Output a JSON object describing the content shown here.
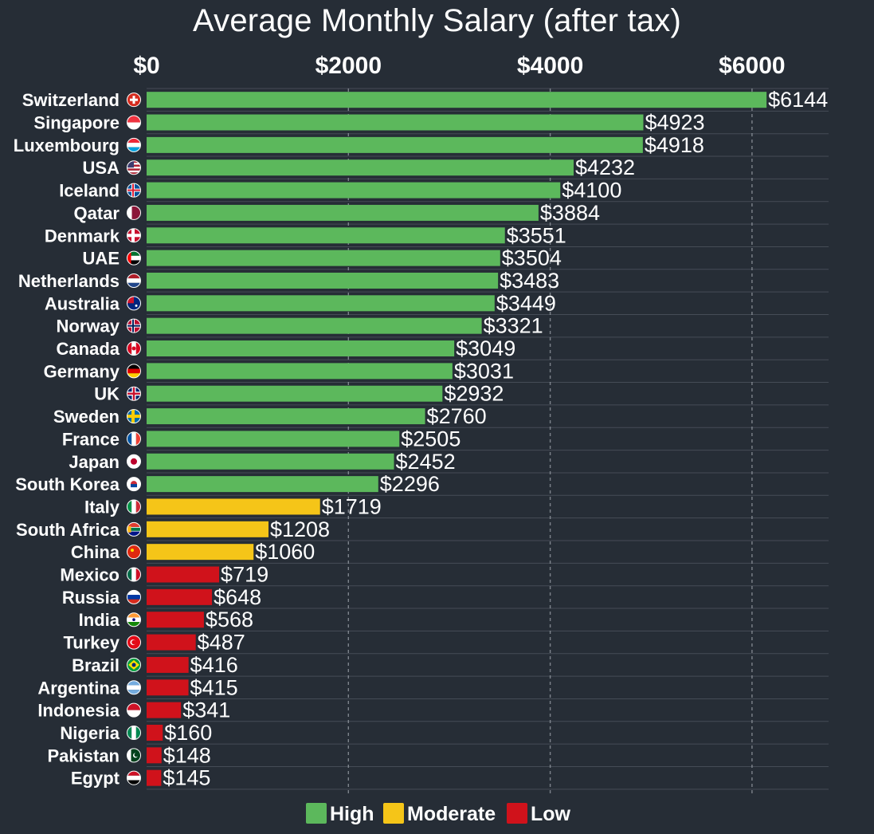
{
  "chart_data": {
    "type": "bar",
    "orientation": "horizontal",
    "title": "Average Monthly Salary (after tax)",
    "xlim": [
      0,
      6800
    ],
    "xticks": [
      0,
      2000,
      4000,
      6000
    ],
    "xtick_labels": [
      "$0",
      "$2000",
      "$4000",
      "$6000"
    ],
    "grid": true,
    "legend_position": "bottom",
    "categories": [
      "Switzerland",
      "Singapore",
      "Luxembourg",
      "USA",
      "Iceland",
      "Qatar",
      "Denmark",
      "UAE",
      "Netherlands",
      "Australia",
      "Norway",
      "Canada",
      "Germany",
      "UK",
      "Sweden",
      "France",
      "Japan",
      "South Korea",
      "Italy",
      "South Africa",
      "China",
      "Mexico",
      "Russia",
      "India",
      "Turkey",
      "Brazil",
      "Argentina",
      "Indonesia",
      "Nigeria",
      "Pakistan",
      "Egypt"
    ],
    "values": [
      6144,
      4923,
      4918,
      4232,
      4100,
      3884,
      3551,
      3504,
      3483,
      3449,
      3321,
      3049,
      3031,
      2932,
      2760,
      2505,
      2452,
      2296,
      1719,
      1208,
      1060,
      719,
      648,
      568,
      487,
      416,
      415,
      341,
      160,
      148,
      145
    ],
    "value_labels": [
      "$6144",
      "$4923",
      "$4918",
      "$4232",
      "$4100",
      "$3884",
      "$3551",
      "$3504",
      "$3483",
      "$3449",
      "$3321",
      "$3049",
      "$3031",
      "$2932",
      "$2760",
      "$2505",
      "$2452",
      "$2296",
      "$1719",
      "$1208",
      "$1060",
      "$719",
      "$648",
      "$568",
      "$487",
      "$416",
      "$415",
      "$341",
      "$160",
      "$148",
      "$145"
    ],
    "groups": [
      "High",
      "High",
      "High",
      "High",
      "High",
      "High",
      "High",
      "High",
      "High",
      "High",
      "High",
      "High",
      "High",
      "High",
      "High",
      "High",
      "High",
      "High",
      "Moderate",
      "Moderate",
      "Moderate",
      "Low",
      "Low",
      "Low",
      "Low",
      "Low",
      "Low",
      "Low",
      "Low",
      "Low",
      "Low"
    ],
    "legend": [
      {
        "name": "High",
        "color": "#5cb85c"
      },
      {
        "name": "Moderate",
        "color": "#f5c518"
      },
      {
        "name": "Low",
        "color": "#d0121b"
      }
    ],
    "flag_icons": [
      "switzerland-flag-icon",
      "singapore-flag-icon",
      "luxembourg-flag-icon",
      "usa-flag-icon",
      "iceland-flag-icon",
      "qatar-flag-icon",
      "denmark-flag-icon",
      "uae-flag-icon",
      "netherlands-flag-icon",
      "australia-flag-icon",
      "norway-flag-icon",
      "canada-flag-icon",
      "germany-flag-icon",
      "uk-flag-icon",
      "sweden-flag-icon",
      "france-flag-icon",
      "japan-flag-icon",
      "south-korea-flag-icon",
      "italy-flag-icon",
      "south-africa-flag-icon",
      "china-flag-icon",
      "mexico-flag-icon",
      "russia-flag-icon",
      "india-flag-icon",
      "turkey-flag-icon",
      "brazil-flag-icon",
      "argentina-flag-icon",
      "indonesia-flag-icon",
      "nigeria-flag-icon",
      "pakistan-flag-icon",
      "egypt-flag-icon"
    ],
    "colors": {
      "background": "#262d36",
      "text": "#ffffff",
      "grid": "#9aa0a8"
    }
  }
}
